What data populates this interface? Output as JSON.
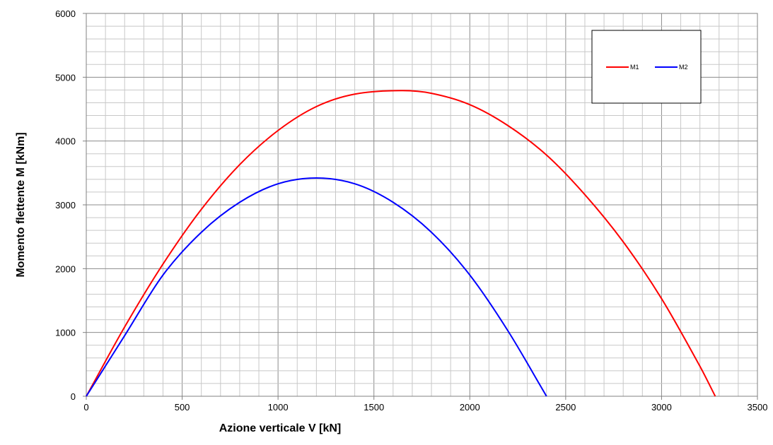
{
  "chart_data": {
    "type": "line",
    "title": "",
    "xlabel": "Azione verticale V [kN]",
    "ylabel": "Momento flettente M [kNm]",
    "xlim": [
      0,
      3500
    ],
    "ylim": [
      0,
      6000
    ],
    "x_ticks": [
      0,
      500,
      1000,
      1500,
      2000,
      2500,
      3000,
      3500
    ],
    "y_ticks": [
      0,
      1000,
      2000,
      3000,
      4000,
      5000,
      6000
    ],
    "x_tick_labels": [
      "0",
      "500",
      "1000",
      "1500",
      "2000",
      "2500",
      "3000",
      "3500"
    ],
    "y_tick_labels": [
      "0",
      "1000",
      "2000",
      "3000",
      "4000",
      "5000",
      "6000"
    ],
    "grid": true,
    "legend_position": "top-right",
    "series": [
      {
        "name": "M1",
        "color": "#ff0000",
        "x": [
          0,
          200,
          400,
          600,
          800,
          1000,
          1200,
          1400,
          1640,
          1800,
          2000,
          2200,
          2400,
          2600,
          2800,
          3000,
          3200,
          3280
        ],
        "y": [
          0,
          1086,
          2072,
          2929,
          3630,
          4165,
          4540,
          4735,
          4790,
          4748,
          4570,
          4240,
          3780,
          3160,
          2420,
          1530,
          470,
          0
        ]
      },
      {
        "name": "M2",
        "color": "#0000ff",
        "x": [
          0,
          200,
          400,
          600,
          800,
          1000,
          1200,
          1400,
          1600,
          1800,
          2000,
          2200,
          2400
        ],
        "y": [
          0,
          950,
          1900,
          2570,
          3040,
          3330,
          3420,
          3330,
          3040,
          2570,
          1900,
          1020,
          0
        ]
      }
    ]
  }
}
